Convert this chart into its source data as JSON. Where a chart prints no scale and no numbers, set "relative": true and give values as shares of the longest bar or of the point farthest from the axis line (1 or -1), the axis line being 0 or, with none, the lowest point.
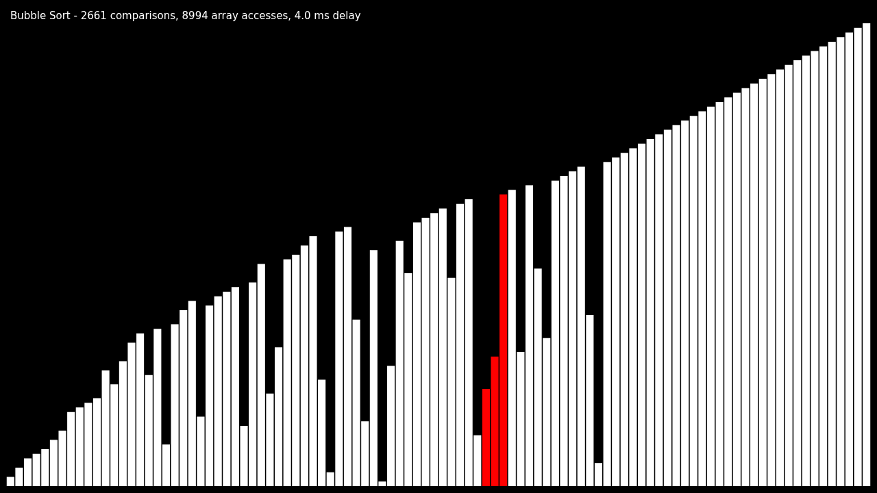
{
  "chart_data": {
    "type": "bar",
    "title": "Bubble Sort - 2661 comparisons, 8994 array accesses, 4.0 ms delay",
    "relative": true,
    "categories": [
      null,
      null,
      null,
      null,
      null,
      null,
      null,
      null,
      null,
      null,
      null,
      null,
      null,
      null,
      null,
      null,
      null,
      null,
      null,
      null,
      null,
      null,
      null,
      null,
      null,
      null,
      null,
      null,
      null,
      null,
      null,
      null,
      null,
      null,
      null,
      null,
      null,
      null,
      null,
      null,
      null,
      null,
      null,
      null,
      null,
      null,
      null,
      null,
      null,
      null,
      null,
      null,
      null,
      null,
      null,
      null,
      null,
      null,
      null,
      null,
      null,
      null,
      null,
      null,
      null,
      null,
      null,
      null,
      null,
      null,
      null,
      null,
      null,
      null,
      null,
      null,
      null,
      null,
      null,
      null,
      null,
      null,
      null,
      null,
      null,
      null,
      null,
      null,
      null,
      null,
      null,
      null,
      null,
      null,
      null,
      null,
      null,
      null,
      null,
      null
    ],
    "values": [
      0.02,
      0.04,
      0.06,
      0.07,
      0.08,
      0.1,
      0.12,
      0.16,
      0.17,
      0.18,
      0.19,
      0.25,
      0.22,
      0.27,
      0.31,
      0.33,
      0.24,
      0.34,
      0.09,
      0.35,
      0.38,
      0.4,
      0.15,
      0.39,
      0.41,
      0.42,
      0.43,
      0.13,
      0.44,
      0.48,
      0.2,
      0.3,
      0.49,
      0.5,
      0.52,
      0.54,
      0.23,
      0.03,
      0.55,
      0.56,
      0.36,
      0.14,
      0.51,
      0.01,
      0.26,
      0.53,
      0.46,
      0.57,
      0.58,
      0.59,
      0.6,
      0.45,
      0.61,
      0.62,
      0.11,
      0.21,
      0.28,
      0.63,
      0.64,
      0.29,
      0.65,
      0.47,
      0.32,
      0.66,
      0.67,
      0.68,
      0.69,
      0.37,
      0.05,
      0.7,
      0.71,
      0.72,
      0.73,
      0.74,
      0.75,
      0.76,
      0.77,
      0.78,
      0.79,
      0.8,
      0.81,
      0.82,
      0.83,
      0.84,
      0.85,
      0.86,
      0.87,
      0.88,
      0.89,
      0.9,
      0.91,
      0.92,
      0.93,
      0.94,
      0.95,
      0.96,
      0.97,
      0.98,
      0.99,
      1
    ],
    "colors": [
      "#ffffff",
      "#ffffff",
      "#ffffff",
      "#ffffff",
      "#ffffff",
      "#ffffff",
      "#ffffff",
      "#ffffff",
      "#ffffff",
      "#ffffff",
      "#ffffff",
      "#ffffff",
      "#ffffff",
      "#ffffff",
      "#ffffff",
      "#ffffff",
      "#ffffff",
      "#ffffff",
      "#ffffff",
      "#ffffff",
      "#ffffff",
      "#ffffff",
      "#ffffff",
      "#ffffff",
      "#ffffff",
      "#ffffff",
      "#ffffff",
      "#ffffff",
      "#ffffff",
      "#ffffff",
      "#ffffff",
      "#ffffff",
      "#ffffff",
      "#ffffff",
      "#ffffff",
      "#ffffff",
      "#ffffff",
      "#ffffff",
      "#ffffff",
      "#ffffff",
      "#ffffff",
      "#ffffff",
      "#ffffff",
      "#ffffff",
      "#ffffff",
      "#ffffff",
      "#ffffff",
      "#ffffff",
      "#ffffff",
      "#ffffff",
      "#ffffff",
      "#ffffff",
      "#ffffff",
      "#ffffff",
      "#ffffff",
      "#ff0000",
      "#ff0000",
      "#ff0000",
      "#ffffff",
      "#ffffff",
      "#ffffff",
      "#ffffff",
      "#ffffff",
      "#ffffff",
      "#ffffff",
      "#ffffff",
      "#ffffff",
      "#ffffff",
      "#ffffff",
      "#ffffff",
      "#ffffff",
      "#ffffff",
      "#ffffff",
      "#ffffff",
      "#ffffff",
      "#ffffff",
      "#ffffff",
      "#ffffff",
      "#ffffff",
      "#ffffff",
      "#ffffff",
      "#ffffff",
      "#ffffff",
      "#ffffff",
      "#ffffff",
      "#ffffff",
      "#ffffff",
      "#ffffff",
      "#ffffff",
      "#ffffff",
      "#ffffff",
      "#ffffff",
      "#ffffff",
      "#ffffff",
      "#ffffff",
      "#ffffff",
      "#ffffff",
      "#ffffff",
      "#ffffff",
      "#ffffff"
    ]
  }
}
